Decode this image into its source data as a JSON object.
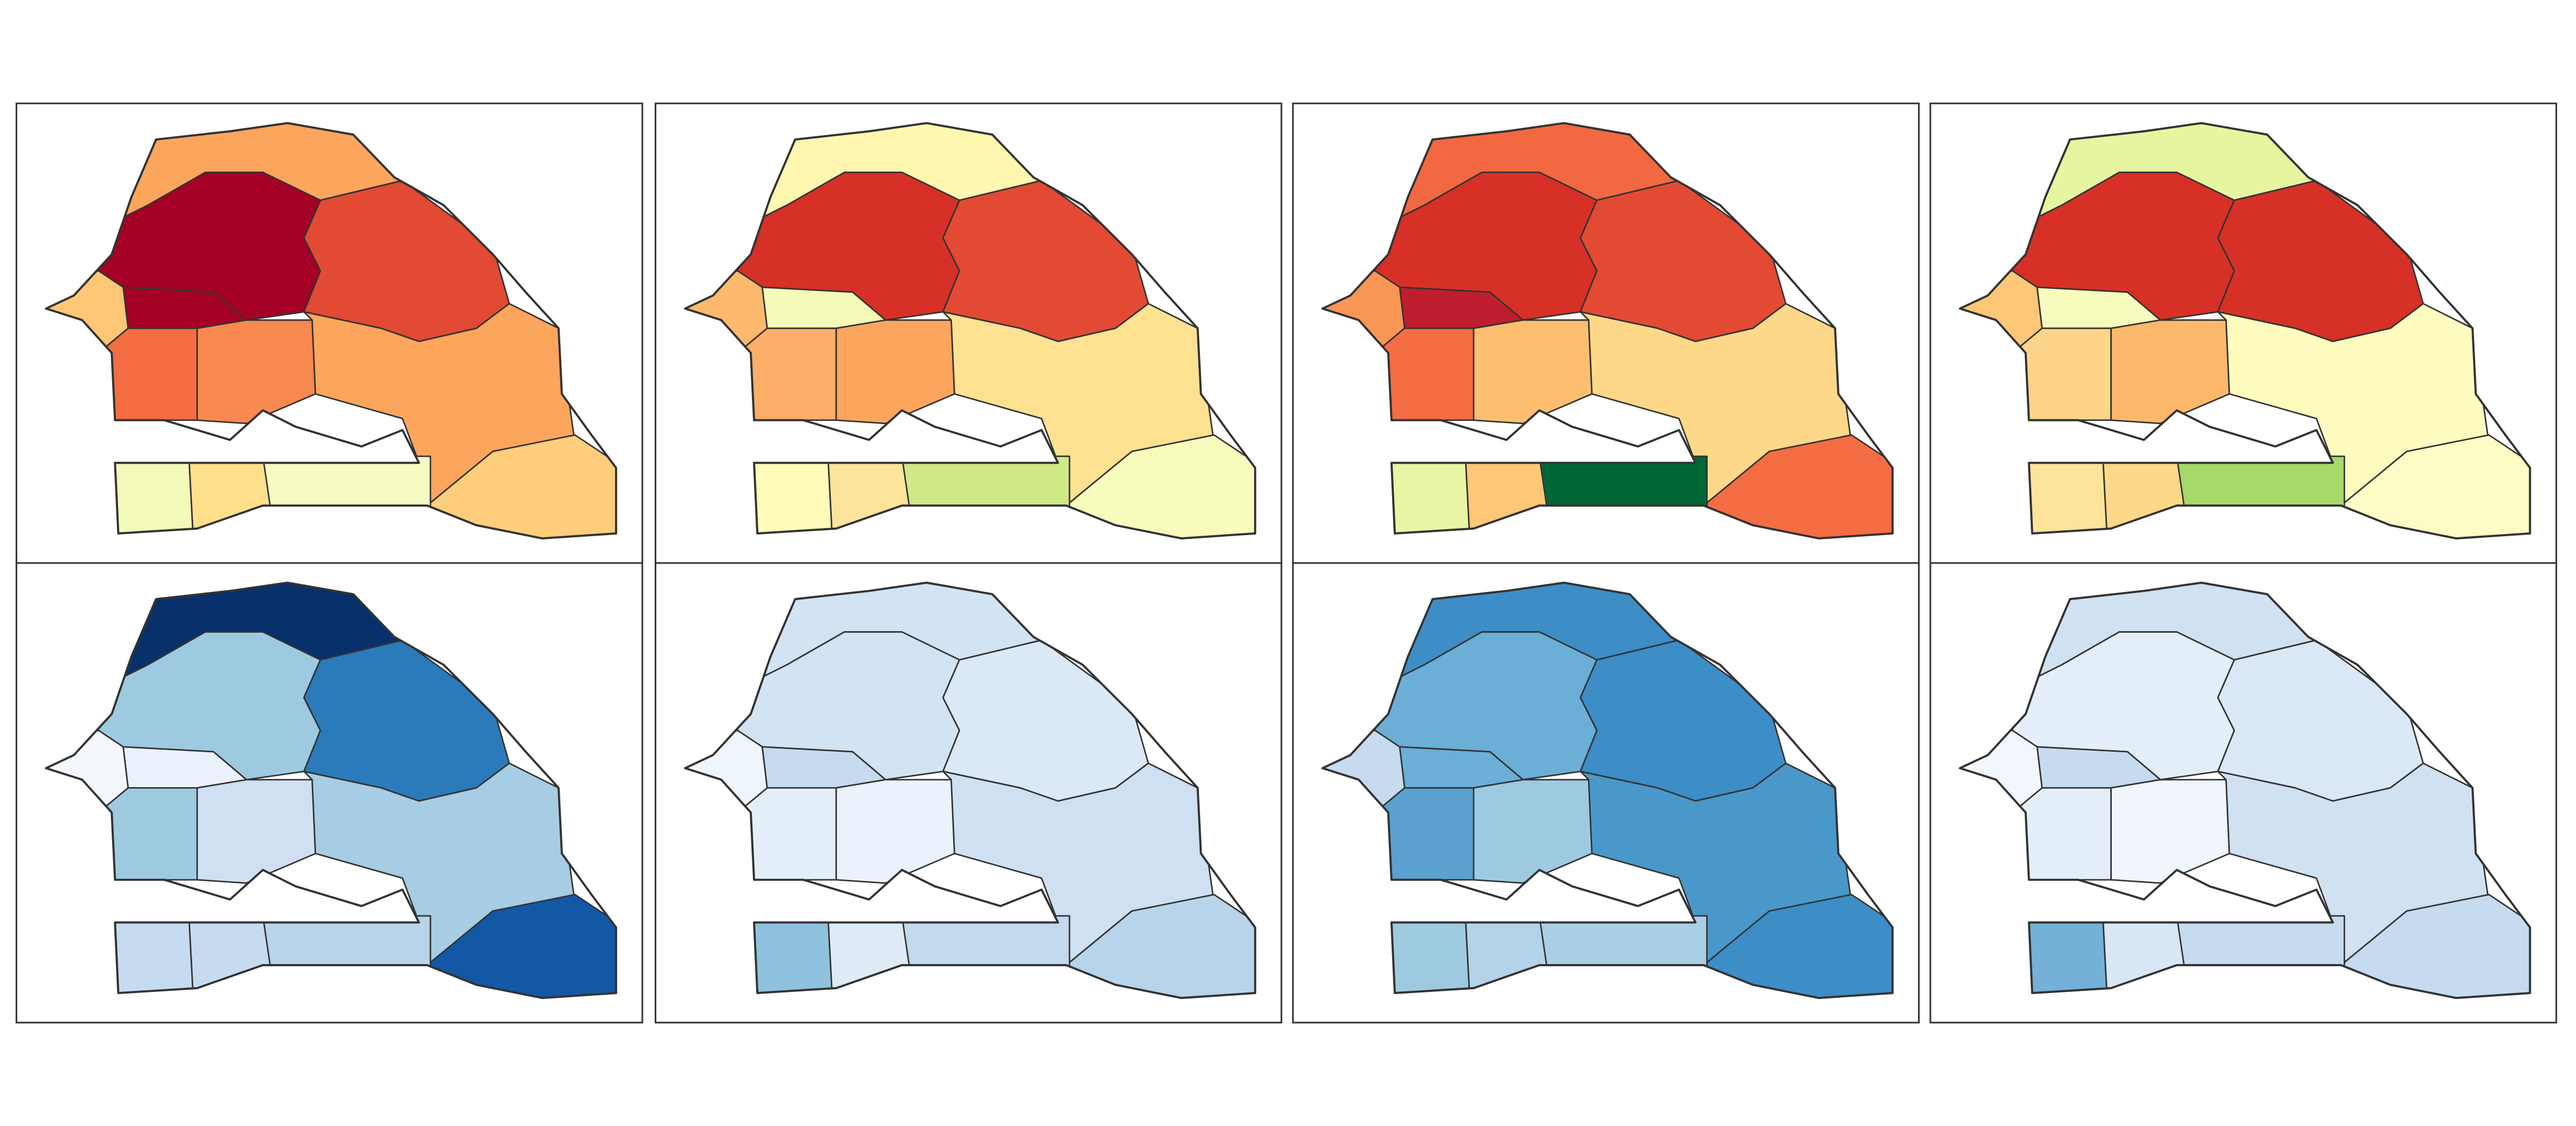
{
  "maps": [
    {
      "region_colors": [
        "#fca55d",
        "#a50026",
        "#e24a33",
        "#fdc776",
        "#a50026",
        "#f46d43",
        "#f88950",
        "#fca55d",
        "#fece7c",
        "#f3f9b9",
        "#fee08b",
        "#f6fbc2"
      ]
    },
    {
      "region_colors": [
        "#fff7b0",
        "#d73027",
        "#e34a33",
        "#fdba6e",
        "#f4fab8",
        "#fcae68",
        "#fca55d",
        "#fee191",
        "#f7fbbc",
        "#fffbb8",
        "#fee39a",
        "#cfe986"
      ]
    },
    {
      "region_colors": [
        "#f26841",
        "#d73027",
        "#e34a33",
        "#f99555",
        "#be1e2d",
        "#f46d43",
        "#fdbf6f",
        "#fdd888",
        "#f46d43",
        "#e8f5a4",
        "#fdc776",
        "#006837"
      ]
    },
    {
      "region_colors": [
        "#e6f5a0",
        "#d73027",
        "#d73027",
        "#fdc776",
        "#f7fbbc",
        "#fcd58a",
        "#fdb86c",
        "#fefbbe",
        "#fefcc6",
        "#fee39a",
        "#fdd888",
        "#a6d96a"
      ]
    },
    {
      "region_colors": [
        "#08306b",
        "#9ecae1",
        "#2b7bba",
        "#f4f8fd",
        "#eaf2fb",
        "#9ecae1",
        "#d0e0f2",
        "#a6cde3",
        "#1258a5",
        "#c6dbef",
        "#c6dbef",
        "#b7d4ea"
      ]
    },
    {
      "region_colors": [
        "#d2e3f3",
        "#d2e3f3",
        "#dbe9f6",
        "#eef5fc",
        "#c6dbef",
        "#e4eef8",
        "#eaf3fb",
        "#cee0f2",
        "#b7d4ea",
        "#8fc2de",
        "#deebf7",
        "#c2d9ee"
      ]
    },
    {
      "region_colors": [
        "#3d8dc6",
        "#6baed6",
        "#3d8dc6",
        "#c6dbef",
        "#6baed6",
        "#5aa1cf",
        "#9ecae1",
        "#4a98c9",
        "#3d8dc6",
        "#9ecae1",
        "#b4d3e9",
        "#a9cfe5"
      ]
    },
    {
      "region_colors": [
        "#d0e1f2",
        "#e3eef9",
        "#dae8f6",
        "#f2f7fd",
        "#c6dbef",
        "#e3eef9",
        "#f0f6fc",
        "#d0e1f2",
        "#c6dbef",
        "#74b0d8",
        "#d8e7f5",
        "#c6dbef"
      ]
    }
  ]
}
